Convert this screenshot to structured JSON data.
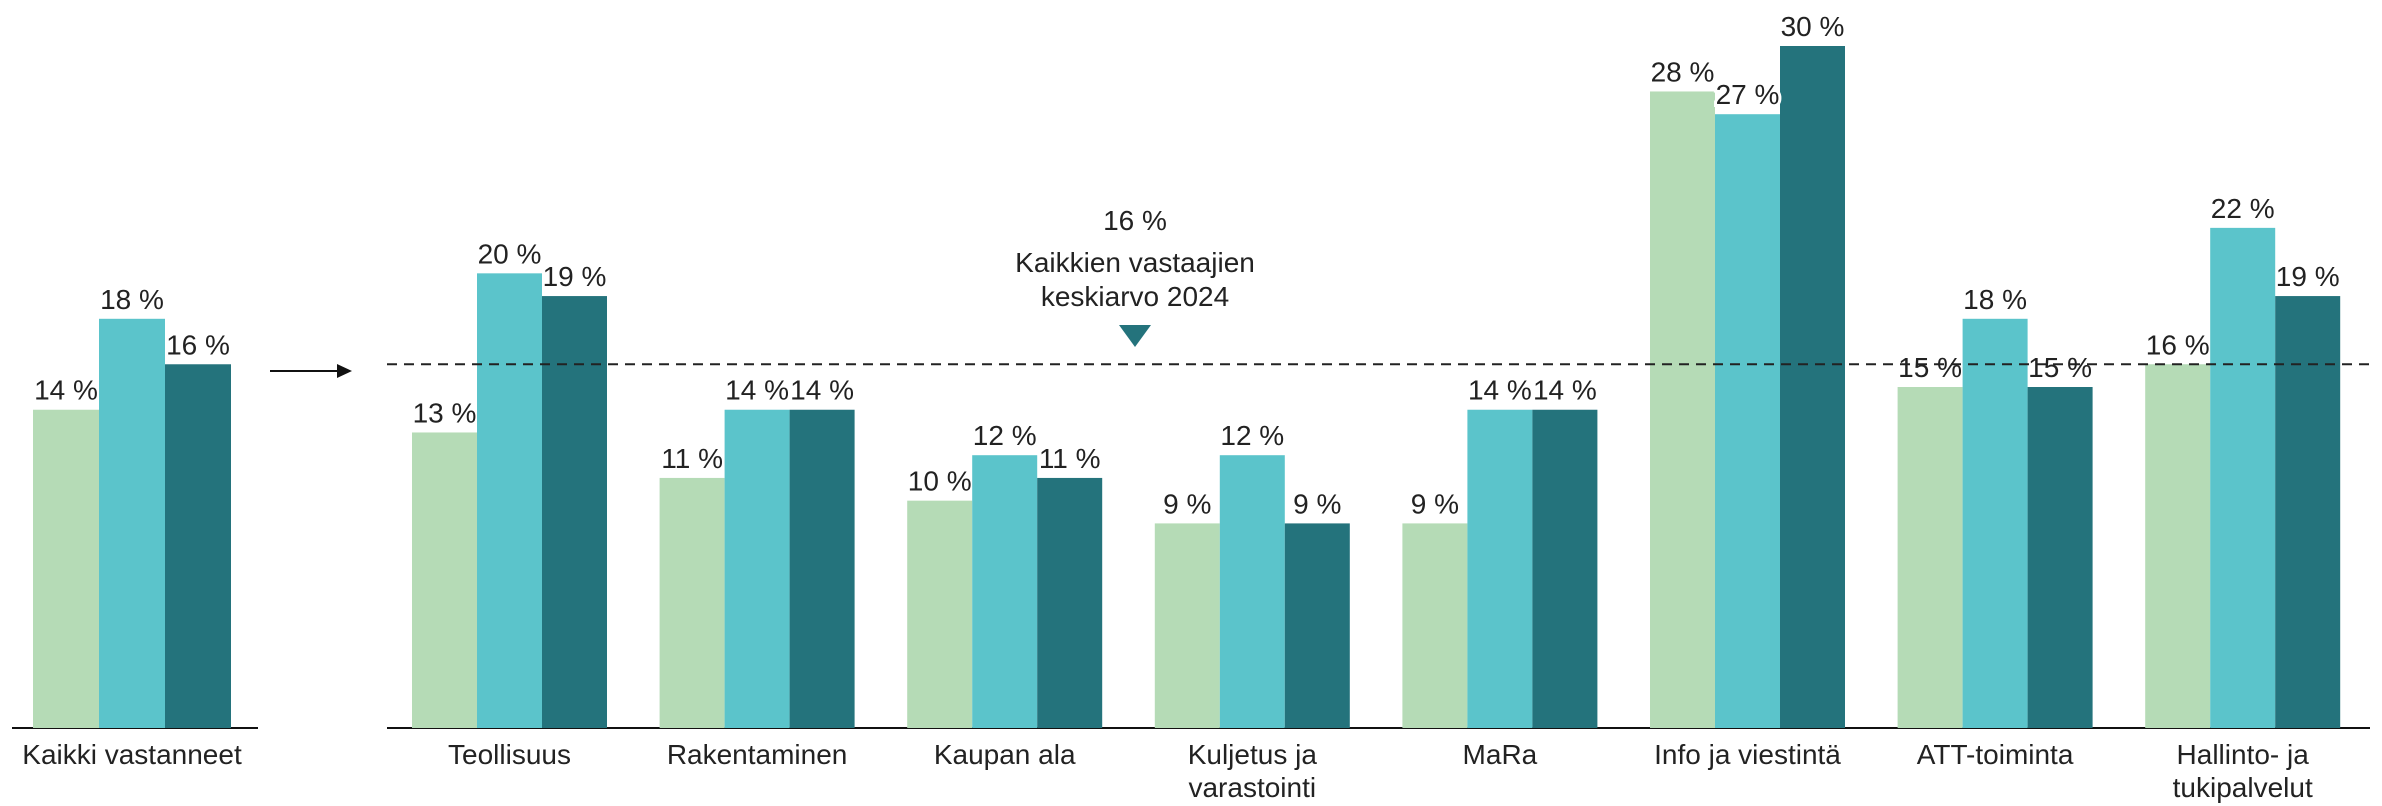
{
  "chart_data": [
    {
      "type": "bar",
      "categories": [
        [
          "Kaikki vastanneet"
        ]
      ],
      "series": [
        {
          "color": "#b5dbb6",
          "values": [
            14
          ],
          "value_labels": [
            "14 %"
          ]
        },
        {
          "color": "#5bc4cb",
          "values": [
            18
          ],
          "value_labels": [
            "18 %"
          ]
        },
        {
          "color": "#24737c",
          "values": [
            16
          ],
          "value_labels": [
            "16 %"
          ]
        }
      ],
      "ylim": [
        0,
        30
      ]
    },
    {
      "type": "bar",
      "categories": [
        [
          "Teollisuus"
        ],
        [
          "Rakentaminen"
        ],
        [
          "Kaupan ala"
        ],
        [
          "Kuljetus ja",
          "varastointi"
        ],
        [
          "MaRa"
        ],
        [
          "Info ja viestintä"
        ],
        [
          "ATT-toiminta"
        ],
        [
          "Hallinto- ja",
          "tukipalvelut"
        ]
      ],
      "series": [
        {
          "color": "#b5dbb6",
          "values": [
            13,
            11,
            10,
            9,
            9,
            28,
            15,
            16
          ],
          "value_labels": [
            "13 %",
            "11 %",
            "10 %",
            "9 %",
            "9 %",
            "28 %",
            "15 %",
            "16 %"
          ]
        },
        {
          "color": "#5bc4cb",
          "values": [
            20,
            14,
            12,
            12,
            14,
            27,
            18,
            22
          ],
          "value_labels": [
            "20 %",
            "14 %",
            "12 %",
            "12 %",
            "14 %",
            "27 %",
            "18 %",
            "22 %"
          ]
        },
        {
          "color": "#24737c",
          "values": [
            19,
            14,
            11,
            9,
            14,
            30,
            15,
            19
          ],
          "value_labels": [
            "19 %",
            "14 %",
            "11 %",
            "9 %",
            "14 %",
            "30 %",
            "15 %",
            "19 %"
          ]
        }
      ],
      "ylim": [
        0,
        30
      ],
      "reference": {
        "value": 16,
        "label": "16 %",
        "text": [
          "Kaikkien vastaajien",
          "keskiarvo 2024"
        ]
      }
    }
  ]
}
